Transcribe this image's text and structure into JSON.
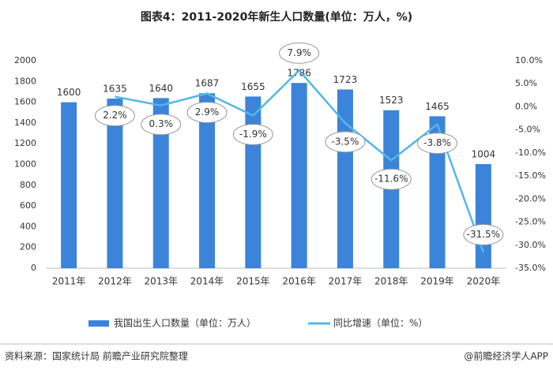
{
  "chart_data": {
    "type": "combo",
    "title": "图表4：2011-2020年新生人口数量(单位：万人，%)",
    "categories": [
      "2011年",
      "2012年",
      "2013年",
      "2014年",
      "2015年",
      "2016年",
      "2017年",
      "2018年",
      "2019年",
      "2020年"
    ],
    "series": [
      {
        "name": "我国出生人口数量（单位：万人）",
        "type": "bar",
        "color": "#3b84d9",
        "values": [
          1600,
          1635,
          1640,
          1687,
          1655,
          1786,
          1723,
          1523,
          1465,
          1004
        ]
      },
      {
        "name": "同比增速（单位：%）",
        "type": "line",
        "axis": "y2",
        "color": "#52b8e8",
        "values": [
          null,
          2.2,
          0.3,
          2.9,
          -1.9,
          7.9,
          -3.5,
          -11.6,
          -3.8,
          -31.5
        ],
        "value_labels": [
          null,
          "2.2%",
          "0.3%",
          "2.9%",
          "-1.9%",
          "7.9%",
          "-3.5%",
          "-11.6%",
          "-3.8%",
          "-31.5%"
        ]
      }
    ],
    "ylim": [
      0,
      2000
    ],
    "yticks": [
      0,
      200,
      400,
      600,
      800,
      1000,
      1200,
      1400,
      1600,
      1800,
      2000
    ],
    "y2lim": [
      -35,
      10
    ],
    "y2ticks": [
      {
        "value": -35,
        "label": "-35.0%"
      },
      {
        "value": -30,
        "label": "-30.0%"
      },
      {
        "value": -25,
        "label": "-25.0%"
      },
      {
        "value": -20,
        "label": "-20.0%"
      },
      {
        "value": -15,
        "label": "-15.0%"
      },
      {
        "value": -10,
        "label": "-10.0%"
      },
      {
        "value": -5,
        "label": "-5.0%"
      },
      {
        "value": 0,
        "label": "0.0%"
      },
      {
        "value": 5,
        "label": "5.0%"
      },
      {
        "value": 10,
        "label": "10.0%"
      }
    ],
    "legend": "bottom",
    "source": "资料来源：国家统计局 前瞻产业研究院整理",
    "credit": "@前瞻经济学人APP"
  }
}
